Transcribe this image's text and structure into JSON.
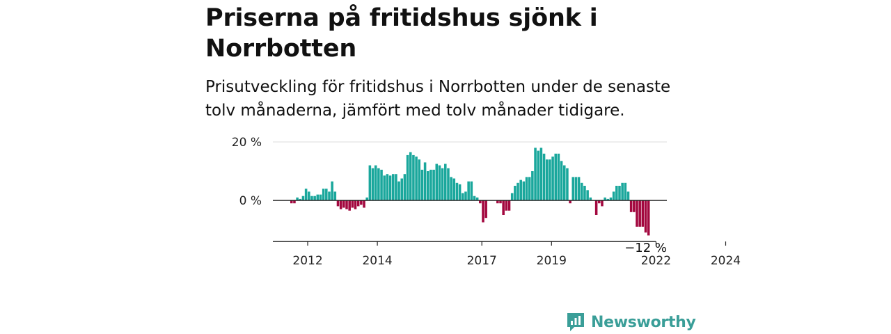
{
  "header": {
    "title": "Priserna på fritidshus sjönk i Norrbotten",
    "subtitle": "Prisutveckling för fritidshus i Norrbotten under de senaste tolv månaderna, jämfört med tolv månader tidigare."
  },
  "brand": {
    "name": "Newsworthy",
    "color": "#3a9e98"
  },
  "colors": {
    "positive": "#1aa79c",
    "negative": "#a3083f",
    "axis": "#333333",
    "grid": "#dddddd"
  },
  "chart_data": {
    "type": "bar",
    "title": "Priserna på fritidshus sjönk i Norrbotten",
    "xlabel": "",
    "ylabel": "",
    "ylim": [
      -14,
      21
    ],
    "start_year": 2011.5,
    "yticks": [
      {
        "value": 20,
        "label": "20 %"
      },
      {
        "value": 0,
        "label": "0 %"
      }
    ],
    "xticks": [
      {
        "year": 2012,
        "label": "2012"
      },
      {
        "year": 2014,
        "label": "2014"
      },
      {
        "year": 2017,
        "label": "2017"
      },
      {
        "year": 2019,
        "label": "2019"
      },
      {
        "year": 2022,
        "label": "2022"
      },
      {
        "year": 2024,
        "label": "2024"
      }
    ],
    "last_label": "−12 %",
    "values": [
      -1.0,
      -1.0,
      1.0,
      0.5,
      1.5,
      4.0,
      3.0,
      1.5,
      1.5,
      2.0,
      2.0,
      4.0,
      4.0,
      3.0,
      6.5,
      3.0,
      -2.0,
      -3.0,
      -2.5,
      -3.0,
      -3.5,
      -2.5,
      -3.0,
      -2.0,
      -1.5,
      -2.5,
      1.0,
      12.0,
      11.0,
      12.0,
      11.0,
      10.5,
      8.5,
      9.0,
      8.5,
      9.0,
      9.0,
      6.5,
      7.5,
      9.0,
      15.5,
      16.5,
      15.5,
      15.0,
      14.0,
      10.5,
      13.0,
      10.0,
      10.5,
      10.5,
      12.5,
      12.0,
      11.0,
      12.5,
      11.0,
      8.0,
      7.5,
      6.0,
      5.5,
      2.5,
      3.0,
      6.5,
      6.5,
      1.5,
      1.0,
      -1.0,
      -7.5,
      -6.0,
      0.0,
      0.0,
      0.0,
      -1.0,
      -1.0,
      -5.0,
      -3.5,
      -3.5,
      2.5,
      5.0,
      6.0,
      7.0,
      6.5,
      8.0,
      8.0,
      10.0,
      18.0,
      17.0,
      18.0,
      16.0,
      14.0,
      14.0,
      15.0,
      16.0,
      16.0,
      13.5,
      12.0,
      11.0,
      -1.0,
      8.0,
      8.0,
      8.0,
      6.0,
      5.0,
      3.5,
      1.0,
      0.0,
      -5.0,
      -1.0,
      -2.0,
      1.0,
      0.5,
      1.0,
      3.0,
      5.0,
      5.0,
      6.0,
      6.0,
      3.0,
      -4.0,
      -4.0,
      -9.0,
      -9.0,
      -9.0,
      -11.0,
      -12.0
    ]
  }
}
